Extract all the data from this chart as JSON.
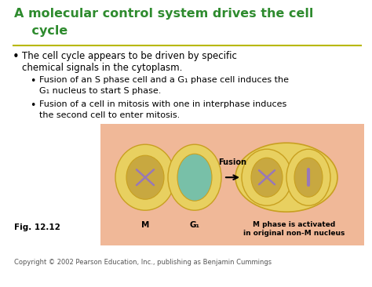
{
  "background_color": "#ffffff",
  "title_line1": "A molecular control system drives the cell",
  "title_line2": "    cycle",
  "title_color": "#2e8b2e",
  "title_fontsize": 11.5,
  "separator_color": "#b8b800",
  "bullet1_line1": "The cell cycle appears to be driven by specific",
  "bullet1_line2": "chemical signals in the cytoplasm.",
  "bullet2_line1": "Fusion of an S phase cell and a G₁ phase cell induces the",
  "bullet2_line2": "G₁ nucleus to start S phase.",
  "bullet3_line1": "Fusion of a cell in mitosis with one in interphase induces",
  "bullet3_line2": "the second cell to enter mitosis.",
  "fig_label": "Fig. 12.12",
  "copyright": "Copyright © 2002 Pearson Education, Inc., publishing as Benjamin Cummings",
  "diagram_bg": "#f0b898",
  "cell_yellow": "#e8d060",
  "cell_yellow_dark": "#d4b840",
  "cell_nucleus_yellow": "#c8a840",
  "cell_green": "#78c0a8",
  "chromosome_color": "#9878b8",
  "fusion_label": "Fusion",
  "m_label": "M",
  "g1_label": "G₁",
  "mph_label": "M phase is activated\nin original non-M nucleus",
  "arrow_color": "#000000",
  "text_color": "#000000",
  "body_fontsize": 8.5,
  "sub_fontsize": 8.0,
  "small_fontsize": 7.0
}
